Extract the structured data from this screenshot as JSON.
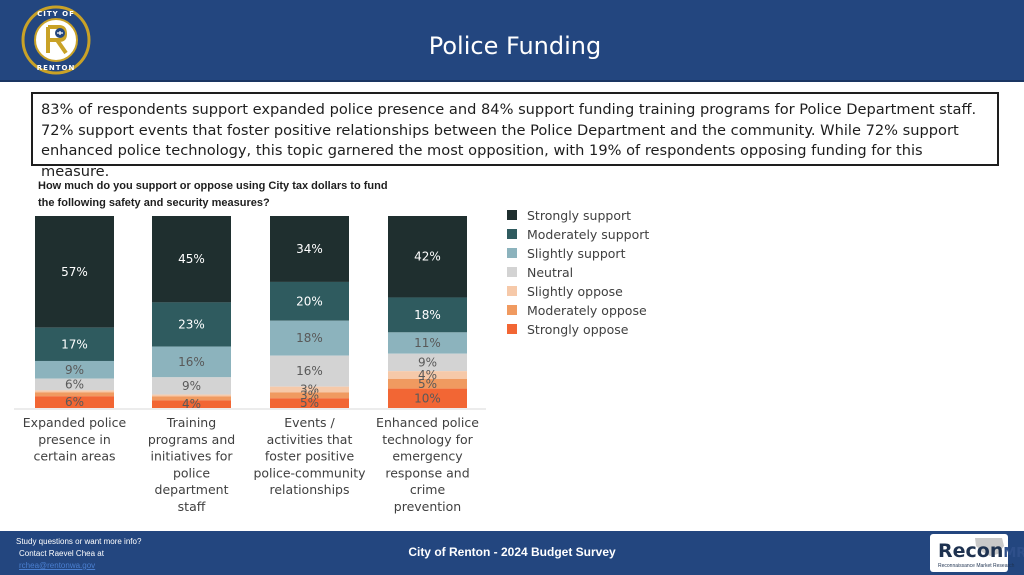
{
  "header": {
    "title": "Police Funding",
    "logo": {
      "ring_text_top": "CITY OF",
      "ring_text_bottom": "RENTON",
      "colors": {
        "ring": "#c9a227",
        "inner": "#ffffff",
        "mark": "#c9a227",
        "dark": "#23467f"
      }
    }
  },
  "summary": {
    "text": "83% of respondents support expanded police presence and 84% support funding training programs for Police Department staff. 72% support events that foster positive relationships between the Police Department and the community. While 72% support enhanced police technology, this topic garnered the most opposition, with 19% of respondents opposing funding for this measure."
  },
  "chart_question": {
    "line1": "How much do you support or oppose using City tax dollars to fund",
    "line2": "the following safety and security measures?"
  },
  "chart_data": {
    "type": "bar",
    "stacked": true,
    "categories": [
      "Expanded police presence in certain areas",
      "Training programs and initiatives for police department staff",
      "Events / activities that foster positive police-community relationships",
      "Enhanced police technology for emergency response and crime prevention"
    ],
    "category_lines": [
      [
        "Expanded police",
        "presence in",
        "certain areas"
      ],
      [
        "Training",
        "programs and",
        "initiatives for",
        "police",
        "department",
        "staff"
      ],
      [
        "Events /",
        "activities that",
        "foster positive",
        "police-community",
        "relationships"
      ],
      [
        "Enhanced police",
        "technology for",
        "emergency",
        "response and",
        "crime",
        "prevention"
      ]
    ],
    "series": [
      {
        "name": "Strongly support",
        "color": "#1f2f2f",
        "values": [
          57,
          45,
          34,
          42
        ]
      },
      {
        "name": "Moderately support",
        "color": "#2f5b5f",
        "values": [
          17,
          23,
          20,
          18
        ]
      },
      {
        "name": "Slightly support",
        "color": "#8cb3bd",
        "values": [
          9,
          16,
          18,
          11
        ]
      },
      {
        "name": "Neutral",
        "color": "#d3d3d3",
        "values": [
          6,
          9,
          16,
          9
        ]
      },
      {
        "name": "Slightly oppose",
        "color": "#f6c9a9",
        "values": [
          1,
          1,
          3,
          4
        ]
      },
      {
        "name": "Moderately oppose",
        "color": "#f09a60",
        "values": [
          2,
          2,
          3,
          5
        ]
      },
      {
        "name": "Strongly oppose",
        "color": "#f26634",
        "values": [
          6,
          4,
          5,
          10
        ]
      }
    ],
    "data_labels": [
      [
        "57%",
        "17%",
        "9%",
        "6%",
        "",
        "",
        "6%"
      ],
      [
        "45%",
        "23%",
        "16%",
        "9%",
        "",
        "",
        "4%"
      ],
      [
        "34%",
        "20%",
        "18%",
        "16%",
        "3%",
        "3%",
        "5%"
      ],
      [
        "42%",
        "18%",
        "11%",
        "9%",
        "4%",
        "5%",
        "10%"
      ]
    ],
    "ylim": [
      0,
      100
    ],
    "legend_position": "right",
    "grid": false
  },
  "footer": {
    "line1": "Study questions or want more info?",
    "line2": "Contact Raevel Chea at",
    "line3": "rchea@rentonwa.gov",
    "center": "City of Renton - 2024 Budget Survey",
    "logo_text": "Recon",
    "logo_mr": "MR",
    "logo_sub": "Reconnaissance Market Research"
  }
}
